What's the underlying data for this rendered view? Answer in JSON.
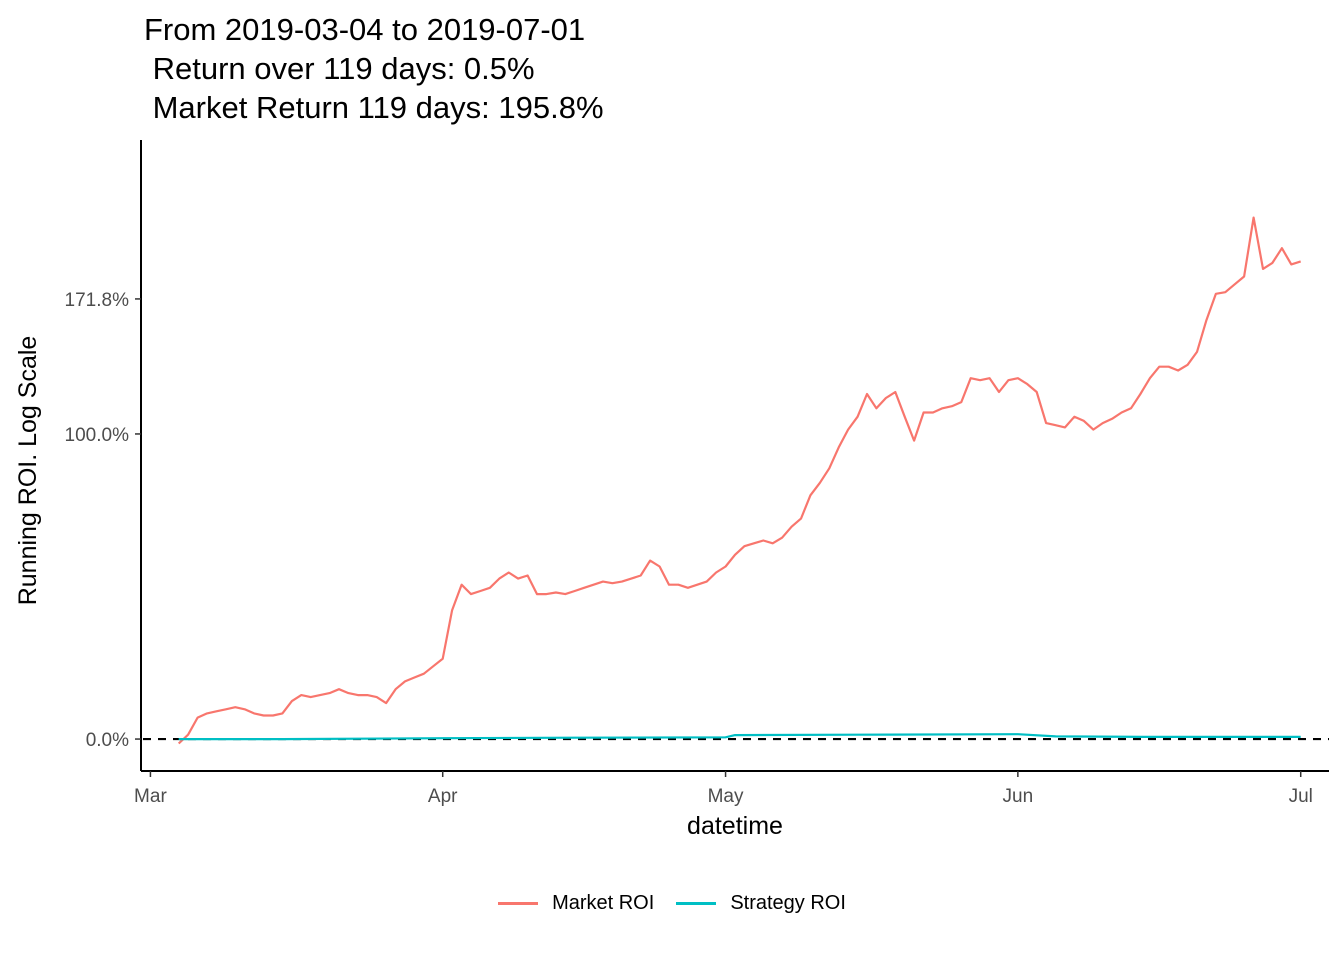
{
  "chart_data": {
    "type": "line",
    "title_lines": [
      "From 2019-03-04 to 2019-07-01",
      " Return over 119 days: 0.5%",
      " Market Return 119 days: 195.8%"
    ],
    "xlabel": "datetime",
    "ylabel": "Running ROI. Log Scale",
    "y_scale": "log(1 + roi)",
    "x_ticks": [
      {
        "date": "2019-03-01",
        "label": "Mar"
      },
      {
        "date": "2019-04-01",
        "label": "Apr"
      },
      {
        "date": "2019-05-01",
        "label": "May"
      },
      {
        "date": "2019-06-01",
        "label": "Jun"
      },
      {
        "date": "2019-07-01",
        "label": "Jul"
      }
    ],
    "y_ticks": [
      {
        "value": 0.0,
        "label": "0.0%"
      },
      {
        "value": 1.0,
        "label": "100.0%"
      },
      {
        "value": 1.718,
        "label": "171.8%"
      }
    ],
    "xlim": [
      "2019-02-28",
      "2019-07-04"
    ],
    "ylim": [
      -0.07,
      2.9
    ],
    "reference_line": {
      "y": 0.0,
      "style": "dashed",
      "color": "#000000"
    },
    "grid": false,
    "legend_position": "bottom",
    "series": [
      {
        "name": "Market ROI",
        "color": "#F8766D",
        "points": [
          [
            "2019-03-04",
            -0.01
          ],
          [
            "2019-03-05",
            0.01
          ],
          [
            "2019-03-06",
            0.05
          ],
          [
            "2019-03-07",
            0.06
          ],
          [
            "2019-03-08",
            0.065
          ],
          [
            "2019-03-09",
            0.07
          ],
          [
            "2019-03-10",
            0.075
          ],
          [
            "2019-03-11",
            0.07
          ],
          [
            "2019-03-12",
            0.06
          ],
          [
            "2019-03-13",
            0.055
          ],
          [
            "2019-03-14",
            0.055
          ],
          [
            "2019-03-15",
            0.06
          ],
          [
            "2019-03-16",
            0.09
          ],
          [
            "2019-03-17",
            0.105
          ],
          [
            "2019-03-18",
            0.1
          ],
          [
            "2019-03-19",
            0.105
          ],
          [
            "2019-03-20",
            0.11
          ],
          [
            "2019-03-21",
            0.12
          ],
          [
            "2019-03-22",
            0.11
          ],
          [
            "2019-03-23",
            0.105
          ],
          [
            "2019-03-24",
            0.105
          ],
          [
            "2019-03-25",
            0.1
          ],
          [
            "2019-03-26",
            0.085
          ],
          [
            "2019-03-27",
            0.12
          ],
          [
            "2019-03-28",
            0.14
          ],
          [
            "2019-03-29",
            0.15
          ],
          [
            "2019-03-30",
            0.16
          ],
          [
            "2019-03-31",
            0.18
          ],
          [
            "2019-04-01",
            0.2
          ],
          [
            "2019-04-02",
            0.34
          ],
          [
            "2019-04-03",
            0.42
          ],
          [
            "2019-04-04",
            0.39
          ],
          [
            "2019-04-05",
            0.4
          ],
          [
            "2019-04-06",
            0.41
          ],
          [
            "2019-04-07",
            0.44
          ],
          [
            "2019-04-08",
            0.46
          ],
          [
            "2019-04-09",
            0.44
          ],
          [
            "2019-04-10",
            0.45
          ],
          [
            "2019-04-11",
            0.39
          ],
          [
            "2019-04-12",
            0.39
          ],
          [
            "2019-04-13",
            0.395
          ],
          [
            "2019-04-14",
            0.39
          ],
          [
            "2019-04-15",
            0.4
          ],
          [
            "2019-04-16",
            0.41
          ],
          [
            "2019-04-17",
            0.42
          ],
          [
            "2019-04-18",
            0.43
          ],
          [
            "2019-04-19",
            0.425
          ],
          [
            "2019-04-20",
            0.43
          ],
          [
            "2019-04-21",
            0.44
          ],
          [
            "2019-04-22",
            0.45
          ],
          [
            "2019-04-23",
            0.5
          ],
          [
            "2019-04-24",
            0.48
          ],
          [
            "2019-04-25",
            0.42
          ],
          [
            "2019-04-26",
            0.42
          ],
          [
            "2019-04-27",
            0.41
          ],
          [
            "2019-04-28",
            0.42
          ],
          [
            "2019-04-29",
            0.43
          ],
          [
            "2019-04-30",
            0.46
          ],
          [
            "2019-05-01",
            0.48
          ],
          [
            "2019-05-02",
            0.52
          ],
          [
            "2019-05-03",
            0.55
          ],
          [
            "2019-05-04",
            0.56
          ],
          [
            "2019-05-05",
            0.57
          ],
          [
            "2019-05-06",
            0.56
          ],
          [
            "2019-05-07",
            0.58
          ],
          [
            "2019-05-08",
            0.62
          ],
          [
            "2019-05-09",
            0.65
          ],
          [
            "2019-05-10",
            0.74
          ],
          [
            "2019-05-11",
            0.79
          ],
          [
            "2019-05-12",
            0.85
          ],
          [
            "2019-05-13",
            0.94
          ],
          [
            "2019-05-14",
            1.02
          ],
          [
            "2019-05-15",
            1.08
          ],
          [
            "2019-05-16",
            1.19
          ],
          [
            "2019-05-17",
            1.12
          ],
          [
            "2019-05-18",
            1.17
          ],
          [
            "2019-05-19",
            1.2
          ],
          [
            "2019-05-20",
            1.08
          ],
          [
            "2019-05-21",
            0.97
          ],
          [
            "2019-05-22",
            1.1
          ],
          [
            "2019-05-23",
            1.1
          ],
          [
            "2019-05-24",
            1.12
          ],
          [
            "2019-05-25",
            1.13
          ],
          [
            "2019-05-26",
            1.15
          ],
          [
            "2019-05-27",
            1.27
          ],
          [
            "2019-05-28",
            1.26
          ],
          [
            "2019-05-29",
            1.27
          ],
          [
            "2019-05-30",
            1.2
          ],
          [
            "2019-05-31",
            1.26
          ],
          [
            "2019-06-01",
            1.27
          ],
          [
            "2019-06-02",
            1.24
          ],
          [
            "2019-06-03",
            1.2
          ],
          [
            "2019-06-04",
            1.05
          ],
          [
            "2019-06-05",
            1.04
          ],
          [
            "2019-06-06",
            1.03
          ],
          [
            "2019-06-07",
            1.08
          ],
          [
            "2019-06-08",
            1.06
          ],
          [
            "2019-06-09",
            1.02
          ],
          [
            "2019-06-10",
            1.05
          ],
          [
            "2019-06-11",
            1.07
          ],
          [
            "2019-06-12",
            1.1
          ],
          [
            "2019-06-13",
            1.12
          ],
          [
            "2019-06-14",
            1.19
          ],
          [
            "2019-06-15",
            1.27
          ],
          [
            "2019-06-16",
            1.33
          ],
          [
            "2019-06-17",
            1.33
          ],
          [
            "2019-06-18",
            1.31
          ],
          [
            "2019-06-19",
            1.34
          ],
          [
            "2019-06-20",
            1.41
          ],
          [
            "2019-06-21",
            1.59
          ],
          [
            "2019-06-22",
            1.75
          ],
          [
            "2019-06-23",
            1.76
          ],
          [
            "2019-06-24",
            1.81
          ],
          [
            "2019-06-25",
            1.86
          ],
          [
            "2019-06-26",
            2.27
          ],
          [
            "2019-06-27",
            1.91
          ],
          [
            "2019-06-28",
            1.95
          ],
          [
            "2019-06-29",
            2.05
          ],
          [
            "2019-06-30",
            1.94
          ],
          [
            "2019-07-01",
            1.96
          ]
        ]
      },
      {
        "name": "Strategy ROI",
        "color": "#00BFC4",
        "points": [
          [
            "2019-03-04",
            0.0
          ],
          [
            "2019-03-15",
            0.0
          ],
          [
            "2019-04-01",
            0.002
          ],
          [
            "2019-04-15",
            0.003
          ],
          [
            "2019-05-01",
            0.004
          ],
          [
            "2019-05-02",
            0.009
          ],
          [
            "2019-05-15",
            0.01
          ],
          [
            "2019-06-01",
            0.011
          ],
          [
            "2019-06-05",
            0.006
          ],
          [
            "2019-06-15",
            0.005
          ],
          [
            "2019-07-01",
            0.005
          ]
        ]
      }
    ]
  }
}
